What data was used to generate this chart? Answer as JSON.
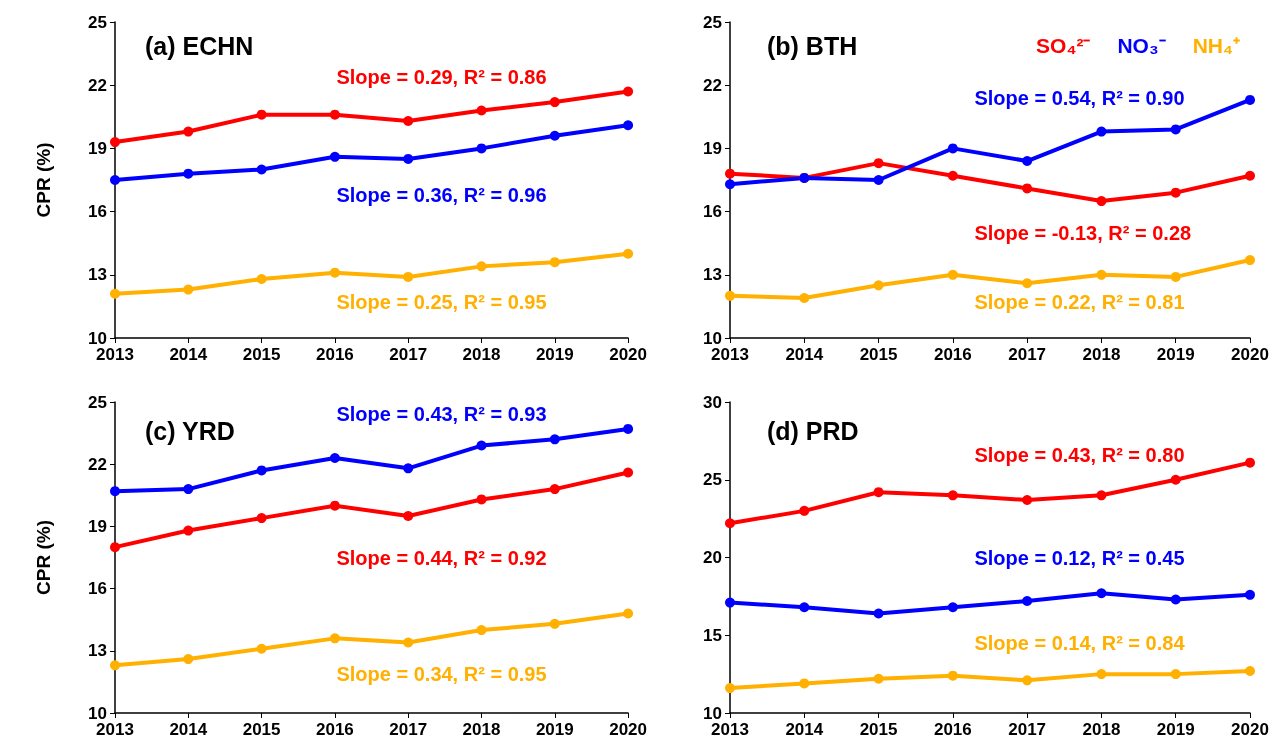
{
  "chart_data": [
    {
      "type": "line",
      "title": "(a) ECHN",
      "ylabel": "CPR (%)",
      "categories": [
        "2013",
        "2014",
        "2015",
        "2016",
        "2017",
        "2018",
        "2019",
        "2020"
      ],
      "series": [
        {
          "color": "#ff0000",
          "values": [
            19.3,
            19.8,
            20.6,
            20.6,
            20.3,
            20.8,
            21.2,
            21.7
          ]
        },
        {
          "color": "#0000ff",
          "values": [
            17.5,
            17.8,
            18.0,
            18.6,
            18.5,
            19.0,
            19.6,
            20.1
          ]
        },
        {
          "color": "#ffb000",
          "values": [
            12.1,
            12.3,
            12.8,
            13.1,
            12.9,
            13.4,
            13.6,
            14.0
          ]
        }
      ],
      "ylim": [
        10,
        25
      ],
      "yticks": [
        10,
        13,
        16,
        19,
        22,
        25
      ],
      "grid": false,
      "marker": "circle",
      "line_style": "solid",
      "legend": false,
      "annotations": [
        "Slope = 0.29, R² = 0.86",
        "Slope = 0.36, R² = 0.96",
        "Slope = 0.25, R² = 0.95"
      ]
    },
    {
      "type": "line",
      "title": "(b) BTH",
      "categories": [
        "2013",
        "2014",
        "2015",
        "2016",
        "2017",
        "2018",
        "2019",
        "2020"
      ],
      "series": [
        {
          "name": "SO₄²⁻",
          "color": "#ff0000",
          "values": [
            17.8,
            17.6,
            18.3,
            17.7,
            17.1,
            16.5,
            16.9,
            17.7
          ]
        },
        {
          "name": "NO₃⁻",
          "color": "#0000ff",
          "values": [
            17.3,
            17.6,
            17.5,
            19.0,
            18.4,
            19.8,
            19.9,
            21.3
          ]
        },
        {
          "name": "NH₄⁺",
          "color": "#ffb000",
          "values": [
            12.0,
            11.9,
            12.5,
            13.0,
            12.6,
            13.0,
            12.9,
            13.7
          ]
        }
      ],
      "ylim": [
        10,
        25
      ],
      "yticks": [
        10,
        13,
        16,
        19,
        22,
        25
      ],
      "grid": false,
      "marker": "circle",
      "line_style": "solid",
      "legend": "top right",
      "annotations": [
        "Slope = -0.13, R² = 0.28",
        "Slope = 0.54, R² = 0.90",
        "Slope = 0.22, R² = 0.81"
      ]
    },
    {
      "type": "line",
      "title": "(c) YRD",
      "ylabel": "CPR (%)",
      "categories": [
        "2013",
        "2014",
        "2015",
        "2016",
        "2017",
        "2018",
        "2019",
        "2020"
      ],
      "series": [
        {
          "color": "#ff0000",
          "values": [
            18.0,
            18.8,
            19.4,
            20.0,
            19.5,
            20.3,
            20.8,
            21.6
          ]
        },
        {
          "color": "#0000ff",
          "values": [
            20.7,
            20.8,
            21.7,
            22.3,
            21.8,
            22.9,
            23.2,
            23.7
          ]
        },
        {
          "color": "#ffb000",
          "values": [
            12.3,
            12.6,
            13.1,
            13.6,
            13.4,
            14.0,
            14.3,
            14.8
          ]
        }
      ],
      "ylim": [
        10,
        25
      ],
      "yticks": [
        10,
        13,
        16,
        19,
        22,
        25
      ],
      "grid": false,
      "marker": "circle",
      "line_style": "solid",
      "legend": false,
      "annotations": [
        "Slope = 0.44, R² = 0.92",
        "Slope = 0.43, R² = 0.93",
        "Slope = 0.34, R² = 0.95"
      ]
    },
    {
      "type": "line",
      "title": "(d) PRD",
      "categories": [
        "2013",
        "2014",
        "2015",
        "2016",
        "2017",
        "2018",
        "2019",
        "2020"
      ],
      "series": [
        {
          "color": "#ff0000",
          "values": [
            22.2,
            23.0,
            24.2,
            24.0,
            23.7,
            24.0,
            25.0,
            26.1
          ]
        },
        {
          "color": "#0000ff",
          "values": [
            17.1,
            16.8,
            16.4,
            16.8,
            17.2,
            17.7,
            17.3,
            17.6
          ]
        },
        {
          "color": "#ffb000",
          "values": [
            11.6,
            11.9,
            12.2,
            12.4,
            12.1,
            12.5,
            12.5,
            12.7
          ]
        }
      ],
      "ylim": [
        10,
        30
      ],
      "yticks": [
        10,
        15,
        20,
        25,
        30
      ],
      "grid": false,
      "marker": "circle",
      "line_style": "solid",
      "legend": false,
      "annotations": [
        "Slope = 0.43, R² = 0.80",
        "Slope = 0.12, R² = 0.45",
        "Slope = 0.14, R² = 0.84"
      ]
    }
  ]
}
